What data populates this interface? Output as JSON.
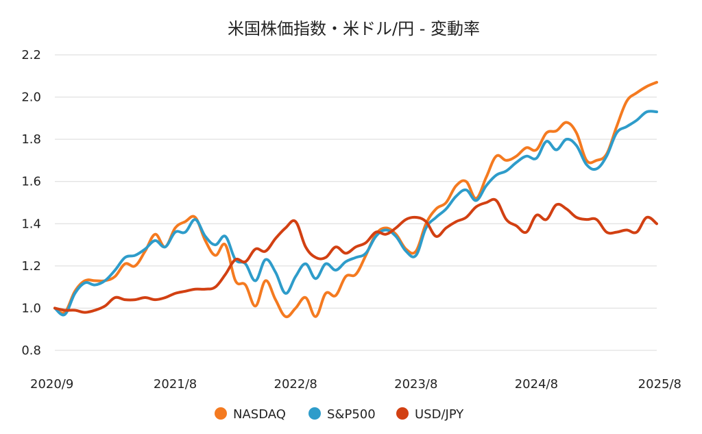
{
  "chart_data": {
    "type": "line",
    "title": "米国株価指数・米ドル/円 - 変動率",
    "xlabel": "",
    "ylabel": "",
    "ylim": [
      0.8,
      2.2
    ],
    "yticks": [
      "0.8",
      "1.0",
      "1.2",
      "1.4",
      "1.6",
      "1.8",
      "2.0",
      "2.2"
    ],
    "xticks": [
      "2020/9",
      "2021/8",
      "2022/8",
      "2023/8",
      "2024/8",
      "2025/8"
    ],
    "grid": true,
    "legend_position": "bottom",
    "x": [
      0,
      1,
      2,
      3,
      4,
      5,
      6,
      7,
      8,
      9,
      10,
      11,
      12,
      13,
      14,
      15,
      16,
      17,
      18,
      19,
      20,
      21,
      22,
      23,
      24,
      25,
      26,
      27,
      28,
      29,
      30,
      31,
      32,
      33,
      34,
      35,
      36,
      37,
      38,
      39,
      40,
      41,
      42,
      43,
      44,
      45,
      46,
      47,
      48,
      49,
      50,
      51,
      52,
      53,
      54,
      55,
      56,
      57,
      58,
      59,
      60
    ],
    "series": [
      {
        "name": "NASDAQ",
        "color": "#F47A20",
        "values": [
          1.0,
          0.98,
          1.08,
          1.13,
          1.13,
          1.13,
          1.15,
          1.21,
          1.2,
          1.27,
          1.35,
          1.29,
          1.38,
          1.41,
          1.43,
          1.32,
          1.25,
          1.3,
          1.13,
          1.11,
          1.01,
          1.13,
          1.04,
          0.96,
          1.0,
          1.05,
          0.96,
          1.07,
          1.06,
          1.15,
          1.16,
          1.25,
          1.35,
          1.38,
          1.35,
          1.28,
          1.27,
          1.4,
          1.47,
          1.5,
          1.58,
          1.6,
          1.52,
          1.62,
          1.72,
          1.7,
          1.72,
          1.76,
          1.75,
          1.83,
          1.84,
          1.88,
          1.83,
          1.7,
          1.7,
          1.73,
          1.86,
          1.98,
          2.02,
          2.05,
          2.07
        ]
      },
      {
        "name": "S&P500",
        "color": "#2E9CCA",
        "values": [
          1.0,
          0.97,
          1.07,
          1.12,
          1.11,
          1.13,
          1.18,
          1.24,
          1.25,
          1.28,
          1.32,
          1.29,
          1.36,
          1.36,
          1.42,
          1.34,
          1.3,
          1.34,
          1.23,
          1.21,
          1.13,
          1.23,
          1.17,
          1.07,
          1.15,
          1.21,
          1.14,
          1.21,
          1.18,
          1.22,
          1.24,
          1.26,
          1.34,
          1.37,
          1.34,
          1.27,
          1.25,
          1.38,
          1.43,
          1.47,
          1.53,
          1.56,
          1.51,
          1.58,
          1.63,
          1.65,
          1.69,
          1.72,
          1.71,
          1.79,
          1.75,
          1.8,
          1.77,
          1.68,
          1.66,
          1.72,
          1.83,
          1.86,
          1.89,
          1.93,
          1.93
        ]
      },
      {
        "name": "USD/JPY",
        "color": "#D24012",
        "values": [
          1.0,
          0.99,
          0.99,
          0.98,
          0.99,
          1.01,
          1.05,
          1.04,
          1.04,
          1.05,
          1.04,
          1.05,
          1.07,
          1.08,
          1.09,
          1.09,
          1.1,
          1.16,
          1.23,
          1.22,
          1.28,
          1.27,
          1.33,
          1.38,
          1.41,
          1.29,
          1.24,
          1.24,
          1.29,
          1.26,
          1.29,
          1.31,
          1.36,
          1.35,
          1.38,
          1.42,
          1.43,
          1.41,
          1.34,
          1.38,
          1.41,
          1.43,
          1.48,
          1.5,
          1.51,
          1.42,
          1.39,
          1.36,
          1.44,
          1.42,
          1.49,
          1.47,
          1.43,
          1.42,
          1.42,
          1.36,
          1.36,
          1.37,
          1.36,
          1.43,
          1.4
        ]
      }
    ]
  }
}
